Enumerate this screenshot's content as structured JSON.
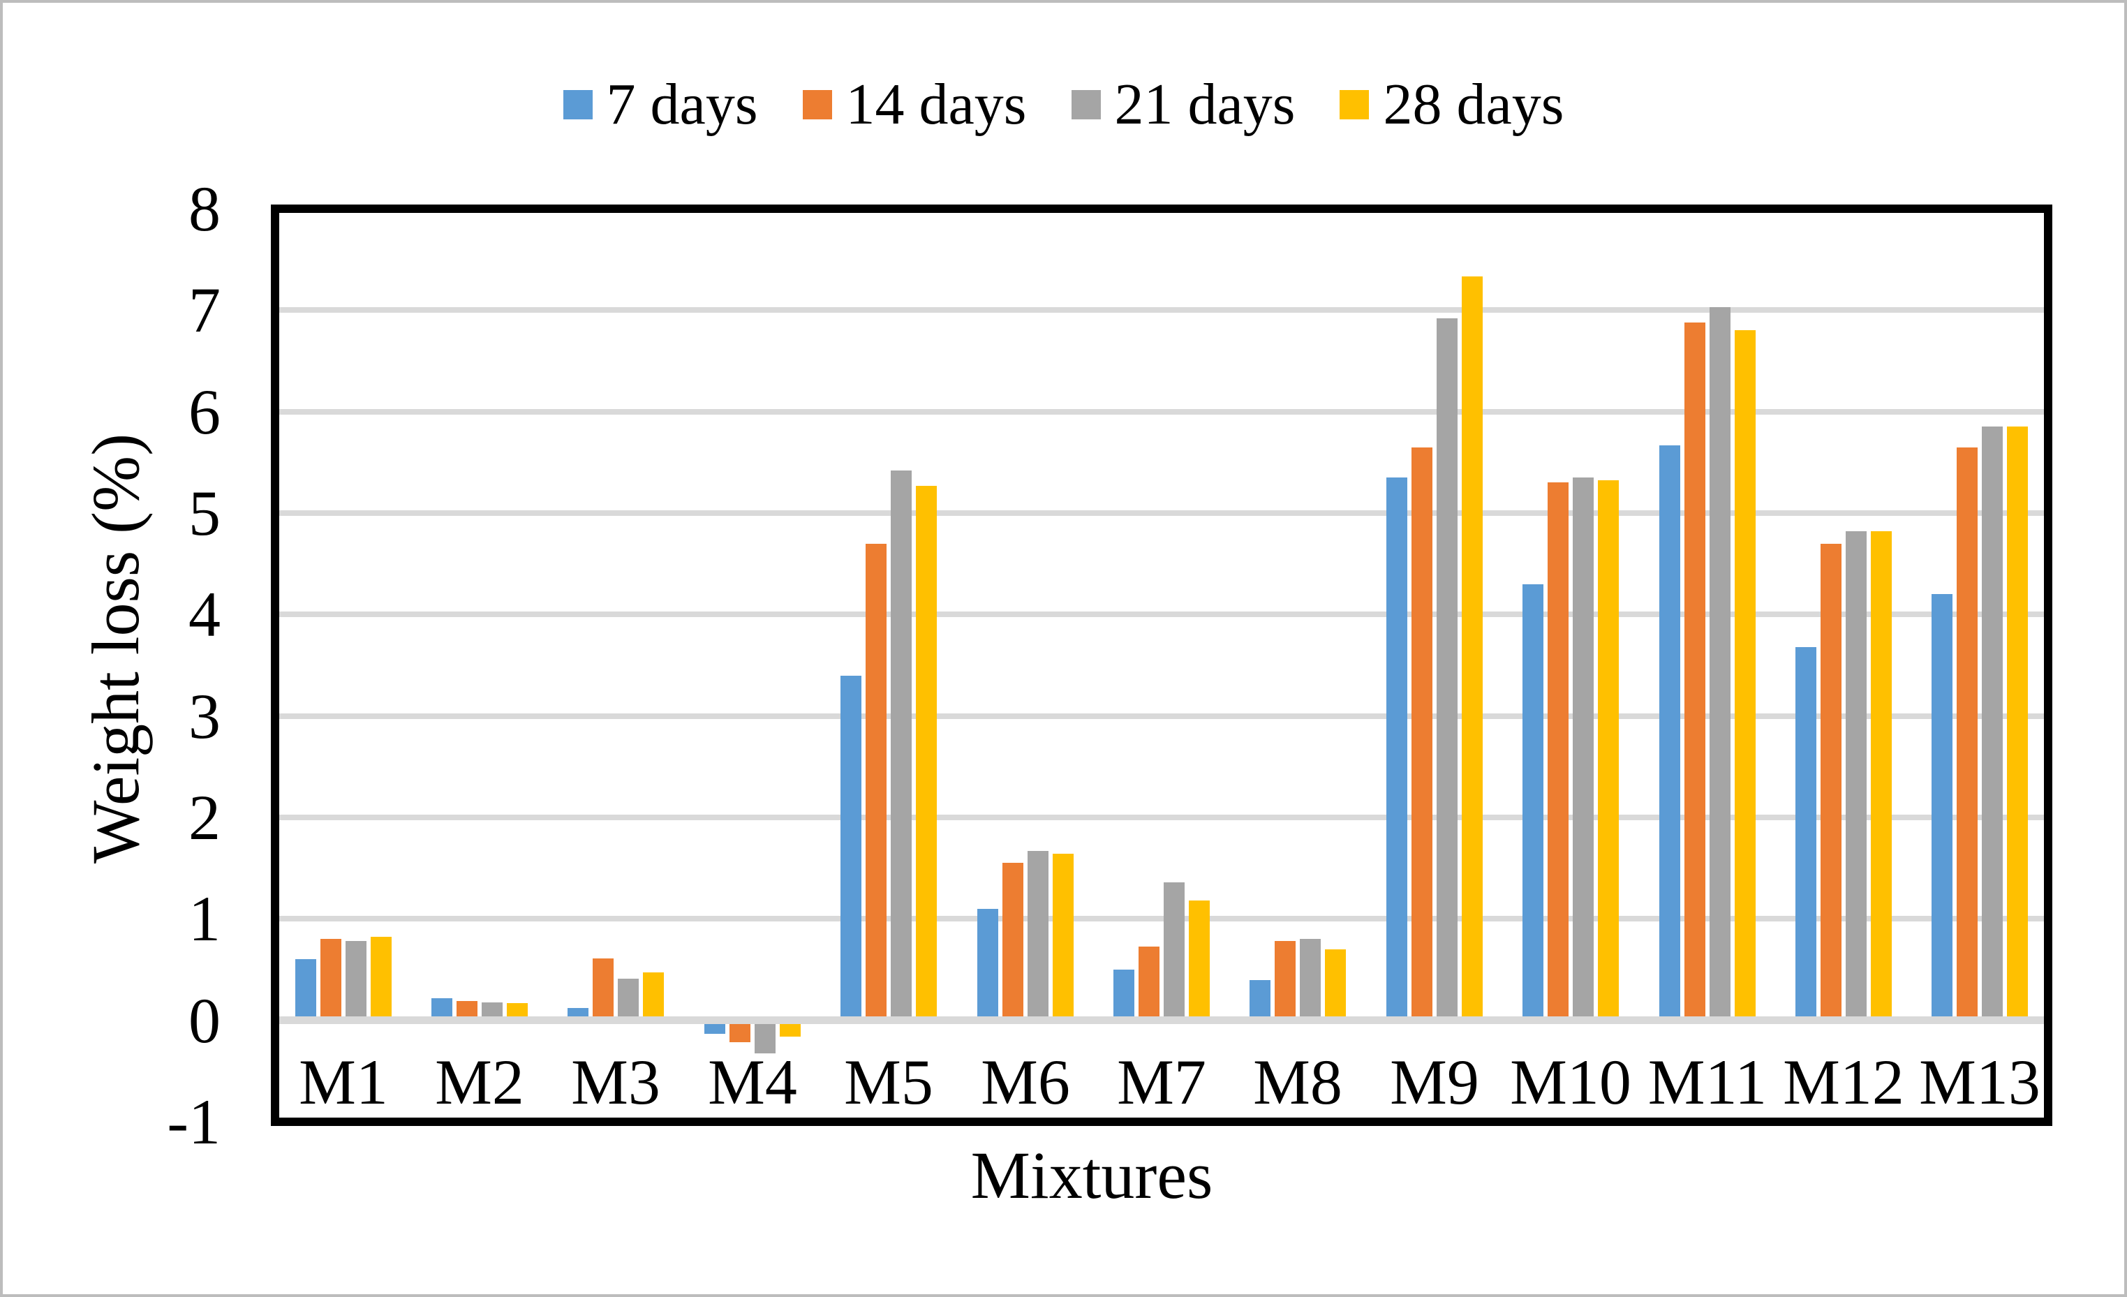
{
  "chart_data": {
    "type": "bar",
    "title": "",
    "xlabel": "Mixtures",
    "ylabel": "Weight loss (%)",
    "categories": [
      "M1",
      "M2",
      "M3",
      "M4",
      "M5",
      "M6",
      "M7",
      "M8",
      "M9",
      "M10",
      "M11",
      "M12",
      "M13"
    ],
    "series": [
      {
        "name": "7 days",
        "color": "#5B9BD5",
        "values": [
          0.6,
          0.22,
          0.12,
          -0.13,
          3.4,
          1.1,
          0.5,
          0.4,
          5.35,
          4.3,
          5.67,
          3.68,
          4.2
        ]
      },
      {
        "name": "14 days",
        "color": "#ED7D31",
        "values": [
          0.8,
          0.19,
          0.61,
          -0.21,
          4.7,
          1.55,
          0.73,
          0.78,
          5.65,
          5.3,
          6.88,
          4.7,
          5.65
        ]
      },
      {
        "name": "21 days",
        "color": "#A5A5A5",
        "values": [
          0.78,
          0.18,
          0.41,
          -0.32,
          5.42,
          1.67,
          1.36,
          0.8,
          6.92,
          5.35,
          7.03,
          4.82,
          5.85
        ]
      },
      {
        "name": "28 days",
        "color": "#FFC000",
        "values": [
          0.82,
          0.17,
          0.47,
          -0.16,
          5.27,
          1.64,
          1.18,
          0.7,
          7.33,
          5.32,
          6.8,
          4.82,
          5.85
        ]
      }
    ],
    "ylim": [
      -1,
      8
    ],
    "ytick_step": 1,
    "ytick_labels": [
      "8",
      "7",
      "6",
      "5",
      "4",
      "3",
      "2",
      "1",
      "0",
      "-1"
    ],
    "grid": "horizontal",
    "legend_position": "top-center"
  },
  "colors": {
    "gridline": "#D9D9D9",
    "axis_frame": "#000000",
    "canvas_border": "#BDBDBD",
    "background": "#FFFFFF"
  }
}
